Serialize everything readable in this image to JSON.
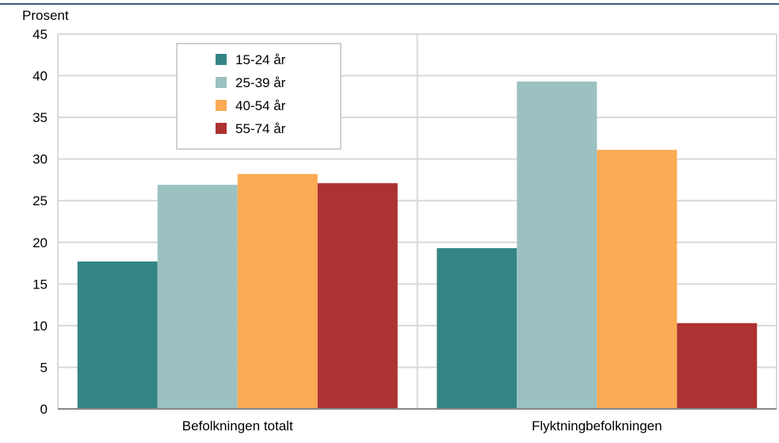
{
  "chart_data": {
    "type": "bar",
    "ylabel": "Prosent",
    "ylim": [
      0,
      45
    ],
    "yticks": [
      0,
      5,
      10,
      15,
      20,
      25,
      30,
      35,
      40,
      45
    ],
    "categories": [
      "Befolkningen totalt",
      "Flyktningbefolkningen"
    ],
    "series": [
      {
        "name": "15-24 år",
        "color": "#338584",
        "values": [
          17.7,
          19.3
        ]
      },
      {
        "name": "25-39 år",
        "color": "#9bc1c1",
        "values": [
          26.9,
          39.3
        ]
      },
      {
        "name": "40-54 år",
        "color": "#fbab55",
        "values": [
          28.2,
          31.1
        ]
      },
      {
        "name": "55-74 år",
        "color": "#ad3232",
        "values": [
          27.1,
          10.3
        ]
      }
    ],
    "grid": true,
    "legend": "top-left"
  },
  "colors": {
    "top_rule": "#3d5a7a",
    "grid": "#d9d9d9",
    "axis": "#888888"
  }
}
